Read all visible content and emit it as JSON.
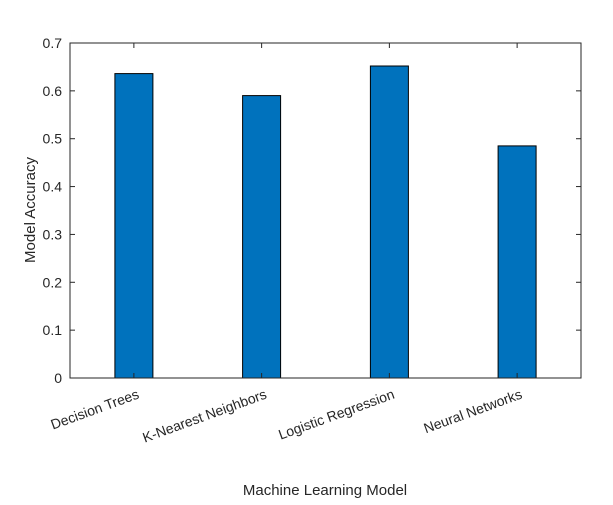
{
  "chart_data": {
    "type": "bar",
    "title": "",
    "xlabel": "Machine Learning Model",
    "ylabel": "Model Accuracy",
    "categories": [
      "Decision Trees",
      "K-Nearest Neighbors",
      "Logistic Regression",
      "Neural Networks"
    ],
    "values": [
      0.636,
      0.59,
      0.652,
      0.485
    ],
    "ylim": [
      0,
      0.7
    ],
    "yticks": [
      "0",
      "0.1",
      "0.2",
      "0.3",
      "0.4",
      "0.5",
      "0.6",
      "0.7"
    ],
    "grid": false,
    "legend": "none",
    "bar_color": "#0072BD",
    "bar_edge_color": "#000000"
  }
}
